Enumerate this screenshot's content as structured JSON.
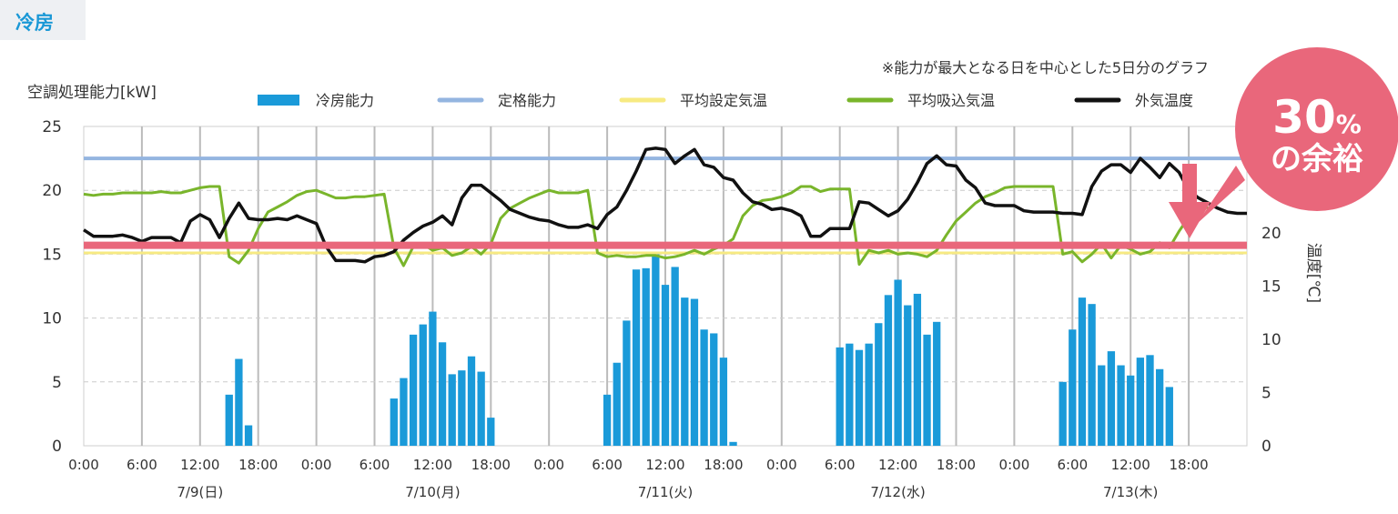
{
  "section_tag": "冷房",
  "note": "※能力が最大となる日を中心とした5日分のグラフ",
  "badge": {
    "big": "30",
    "unit": "%",
    "line2": "の余裕"
  },
  "colors": {
    "cooling": "#1a9ad9",
    "rated": "#94b5e0",
    "setpoint": "#f7ea82",
    "intake": "#79b52b",
    "outdoor": "#111111",
    "threshold": "#e9677b",
    "badge": "#e9677b",
    "grid": "#bbbbbb"
  },
  "chart_data": {
    "type": "bar+line",
    "y_left_label": "空調処理能力[kW]",
    "y_right_label": "温度[℃]",
    "y_left_ticks": [
      "0",
      "5",
      "10",
      "15",
      "20",
      "25"
    ],
    "y_right_ticks": [
      "0",
      "5",
      "10",
      "15",
      "20",
      "25"
    ],
    "ylim_left": [
      0,
      25
    ],
    "ylim_right": [
      0,
      30
    ],
    "x_unit": "hours",
    "x_range": [
      0,
      120
    ],
    "x_tick_labels": [
      "0:00",
      "6:00",
      "12:00",
      "18:00",
      "0:00",
      "6:00",
      "12:00",
      "18:00",
      "0:00",
      "6:00",
      "12:00",
      "18:00",
      "0:00",
      "6:00",
      "12:00",
      "18:00",
      "0:00",
      "6:00",
      "12:00",
      "18:00"
    ],
    "day_labels": [
      "7/9(日)",
      "7/10(月)",
      "7/11(火)",
      "7/12(水)",
      "7/13(木)"
    ],
    "legend": [
      "冷房能力",
      "定格能力",
      "平均設定気温",
      "平均吸込気温",
      "外気温度"
    ],
    "grid": true,
    "threshold_kw": 15.7,
    "rated_kw": 22.5,
    "setpoint_kw": 15.1,
    "cooling_bars": [
      [
        15,
        4.0
      ],
      [
        16,
        6.8
      ],
      [
        17,
        1.6
      ],
      [
        32,
        3.7
      ],
      [
        33,
        5.3
      ],
      [
        34,
        8.7
      ],
      [
        35,
        9.5
      ],
      [
        36,
        10.5
      ],
      [
        37,
        8.1
      ],
      [
        38,
        5.6
      ],
      [
        39,
        5.9
      ],
      [
        40,
        7.0
      ],
      [
        41,
        5.8
      ],
      [
        42,
        2.2
      ],
      [
        54,
        4.0
      ],
      [
        55,
        6.5
      ],
      [
        56,
        9.8
      ],
      [
        57,
        13.8
      ],
      [
        58,
        13.9
      ],
      [
        59,
        15.2
      ],
      [
        60,
        12.6
      ],
      [
        61,
        14.0
      ],
      [
        62,
        11.6
      ],
      [
        63,
        11.5
      ],
      [
        64,
        9.1
      ],
      [
        65,
        8.8
      ],
      [
        66,
        6.9
      ],
      [
        67,
        0.3
      ],
      [
        78,
        7.7
      ],
      [
        79,
        8.0
      ],
      [
        80,
        7.5
      ],
      [
        81,
        8.0
      ],
      [
        82,
        9.6
      ],
      [
        83,
        11.8
      ],
      [
        84,
        13.0
      ],
      [
        85,
        11.0
      ],
      [
        86,
        11.9
      ],
      [
        87,
        8.7
      ],
      [
        88,
        9.7
      ],
      [
        101,
        5.0
      ],
      [
        102,
        9.1
      ],
      [
        103,
        11.6
      ],
      [
        104,
        11.1
      ],
      [
        105,
        6.3
      ],
      [
        106,
        7.4
      ],
      [
        107,
        6.3
      ],
      [
        108,
        5.5
      ],
      [
        109,
        6.9
      ],
      [
        110,
        7.1
      ],
      [
        111,
        6.0
      ],
      [
        112,
        4.6
      ]
    ],
    "intake_kw": [
      [
        0,
        19.7
      ],
      [
        1,
        19.6
      ],
      [
        2,
        19.7
      ],
      [
        3,
        19.7
      ],
      [
        4,
        19.8
      ],
      [
        5,
        19.8
      ],
      [
        6,
        19.8
      ],
      [
        7,
        19.8
      ],
      [
        8,
        19.9
      ],
      [
        9,
        19.8
      ],
      [
        10,
        19.8
      ],
      [
        11,
        20.0
      ],
      [
        12,
        20.2
      ],
      [
        13,
        20.3
      ],
      [
        14,
        20.3
      ],
      [
        15,
        14.8
      ],
      [
        16,
        14.3
      ],
      [
        17,
        15.3
      ],
      [
        18,
        17.0
      ],
      [
        19,
        18.3
      ],
      [
        20,
        18.7
      ],
      [
        21,
        19.1
      ],
      [
        22,
        19.6
      ],
      [
        23,
        19.9
      ],
      [
        24,
        20.0
      ],
      [
        25,
        19.7
      ],
      [
        26,
        19.4
      ],
      [
        27,
        19.4
      ],
      [
        28,
        19.5
      ],
      [
        29,
        19.5
      ],
      [
        30,
        19.6
      ],
      [
        31,
        19.7
      ],
      [
        32,
        15.5
      ],
      [
        33,
        14.1
      ],
      [
        34,
        15.6
      ],
      [
        35,
        15.8
      ],
      [
        36,
        15.3
      ],
      [
        37,
        15.5
      ],
      [
        38,
        14.9
      ],
      [
        39,
        15.1
      ],
      [
        40,
        15.6
      ],
      [
        41,
        15.0
      ],
      [
        42,
        15.8
      ],
      [
        43,
        17.8
      ],
      [
        44,
        18.6
      ],
      [
        45,
        19.0
      ],
      [
        46,
        19.4
      ],
      [
        47,
        19.7
      ],
      [
        48,
        20.0
      ],
      [
        49,
        19.8
      ],
      [
        50,
        19.8
      ],
      [
        51,
        19.8
      ],
      [
        52,
        20.0
      ],
      [
        53,
        15.1
      ],
      [
        54,
        14.8
      ],
      [
        55,
        14.9
      ],
      [
        56,
        14.8
      ],
      [
        57,
        14.8
      ],
      [
        58,
        14.9
      ],
      [
        59,
        14.9
      ],
      [
        60,
        14.7
      ],
      [
        61,
        14.8
      ],
      [
        62,
        15.0
      ],
      [
        63,
        15.3
      ],
      [
        64,
        15.0
      ],
      [
        65,
        15.4
      ],
      [
        66,
        15.7
      ],
      [
        67,
        16.2
      ],
      [
        68,
        18.0
      ],
      [
        69,
        18.8
      ],
      [
        70,
        19.2
      ],
      [
        71,
        19.3
      ],
      [
        72,
        19.5
      ],
      [
        73,
        19.8
      ],
      [
        74,
        20.3
      ],
      [
        75,
        20.3
      ],
      [
        76,
        19.9
      ],
      [
        77,
        20.1
      ],
      [
        78,
        20.1
      ],
      [
        79,
        20.1
      ],
      [
        80,
        14.2
      ],
      [
        81,
        15.3
      ],
      [
        82,
        15.1
      ],
      [
        83,
        15.3
      ],
      [
        84,
        15.0
      ],
      [
        85,
        15.1
      ],
      [
        86,
        15.0
      ],
      [
        87,
        14.8
      ],
      [
        88,
        15.3
      ],
      [
        89,
        16.5
      ],
      [
        90,
        17.6
      ],
      [
        91,
        18.3
      ],
      [
        92,
        19.0
      ],
      [
        93,
        19.5
      ],
      [
        94,
        19.8
      ],
      [
        95,
        20.2
      ],
      [
        96,
        20.3
      ],
      [
        97,
        20.3
      ],
      [
        98,
        20.3
      ],
      [
        99,
        20.3
      ],
      [
        100,
        20.3
      ],
      [
        101,
        15.0
      ],
      [
        102,
        15.2
      ],
      [
        103,
        14.4
      ],
      [
        104,
        15.0
      ],
      [
        105,
        15.8
      ],
      [
        106,
        14.7
      ],
      [
        107,
        15.7
      ],
      [
        108,
        15.4
      ],
      [
        109,
        15.0
      ],
      [
        110,
        15.2
      ],
      [
        111,
        15.9
      ],
      [
        112,
        15.5
      ],
      [
        113,
        16.8
      ],
      [
        114,
        17.9
      ],
      [
        115,
        18.4
      ],
      [
        116,
        18.7
      ]
    ],
    "outdoor_kw": [
      [
        0,
        16.9
      ],
      [
        1,
        16.4
      ],
      [
        2,
        16.4
      ],
      [
        3,
        16.4
      ],
      [
        4,
        16.5
      ],
      [
        5,
        16.3
      ],
      [
        6,
        16.0
      ],
      [
        7,
        16.3
      ],
      [
        8,
        16.3
      ],
      [
        9,
        16.3
      ],
      [
        10,
        15.9
      ],
      [
        11,
        17.6
      ],
      [
        12,
        18.1
      ],
      [
        13,
        17.7
      ],
      [
        14,
        16.3
      ],
      [
        15,
        17.8
      ],
      [
        16,
        19.0
      ],
      [
        17,
        17.8
      ],
      [
        18,
        17.7
      ],
      [
        19,
        17.7
      ],
      [
        20,
        17.8
      ],
      [
        21,
        17.7
      ],
      [
        22,
        18.0
      ],
      [
        23,
        17.7
      ],
      [
        24,
        17.4
      ],
      [
        25,
        15.6
      ],
      [
        26,
        14.5
      ],
      [
        27,
        14.5
      ],
      [
        28,
        14.5
      ],
      [
        29,
        14.4
      ],
      [
        30,
        14.8
      ],
      [
        31,
        14.9
      ],
      [
        32,
        15.2
      ],
      [
        33,
        16.1
      ],
      [
        34,
        16.7
      ],
      [
        35,
        17.2
      ],
      [
        36,
        17.5
      ],
      [
        37,
        18.0
      ],
      [
        38,
        17.3
      ],
      [
        39,
        19.4
      ],
      [
        40,
        20.4
      ],
      [
        41,
        20.4
      ],
      [
        42,
        19.8
      ],
      [
        43,
        19.2
      ],
      [
        44,
        18.5
      ],
      [
        45,
        18.2
      ],
      [
        46,
        17.9
      ],
      [
        47,
        17.7
      ],
      [
        48,
        17.6
      ],
      [
        49,
        17.3
      ],
      [
        50,
        17.1
      ],
      [
        51,
        17.1
      ],
      [
        52,
        17.3
      ],
      [
        53,
        17.0
      ],
      [
        54,
        18.1
      ],
      [
        55,
        18.7
      ],
      [
        56,
        20.0
      ],
      [
        57,
        21.5
      ],
      [
        58,
        23.2
      ],
      [
        59,
        23.3
      ],
      [
        60,
        23.2
      ],
      [
        61,
        22.1
      ],
      [
        62,
        22.7
      ],
      [
        63,
        23.2
      ],
      [
        64,
        22.0
      ],
      [
        65,
        21.8
      ],
      [
        66,
        21.0
      ],
      [
        67,
        20.8
      ],
      [
        68,
        19.8
      ],
      [
        69,
        19.1
      ],
      [
        70,
        18.9
      ],
      [
        71,
        18.5
      ],
      [
        72,
        18.6
      ],
      [
        73,
        18.4
      ],
      [
        74,
        18.0
      ],
      [
        75,
        16.4
      ],
      [
        76,
        16.4
      ],
      [
        77,
        17.0
      ],
      [
        78,
        17.0
      ],
      [
        79,
        17.0
      ],
      [
        80,
        19.1
      ],
      [
        81,
        19.0
      ],
      [
        82,
        18.5
      ],
      [
        83,
        18.0
      ],
      [
        84,
        18.4
      ],
      [
        85,
        19.3
      ],
      [
        86,
        20.6
      ],
      [
        87,
        22.1
      ],
      [
        88,
        22.7
      ],
      [
        89,
        22.0
      ],
      [
        90,
        21.9
      ],
      [
        91,
        20.8
      ],
      [
        92,
        20.2
      ],
      [
        93,
        19.0
      ],
      [
        94,
        18.8
      ],
      [
        95,
        18.8
      ],
      [
        96,
        18.8
      ],
      [
        97,
        18.4
      ],
      [
        98,
        18.3
      ],
      [
        99,
        18.3
      ],
      [
        100,
        18.3
      ],
      [
        101,
        18.2
      ],
      [
        102,
        18.2
      ],
      [
        103,
        18.1
      ],
      [
        104,
        20.3
      ],
      [
        105,
        21.5
      ],
      [
        106,
        22.0
      ],
      [
        107,
        22.0
      ],
      [
        108,
        21.4
      ],
      [
        109,
        22.5
      ],
      [
        110,
        21.8
      ],
      [
        111,
        21.0
      ],
      [
        112,
        22.1
      ],
      [
        113,
        21.4
      ],
      [
        114,
        20.0
      ],
      [
        115,
        19.4
      ],
      [
        116,
        19.0
      ],
      [
        117,
        18.6
      ],
      [
        118,
        18.3
      ],
      [
        119,
        18.2
      ],
      [
        120,
        18.2
      ]
    ]
  }
}
